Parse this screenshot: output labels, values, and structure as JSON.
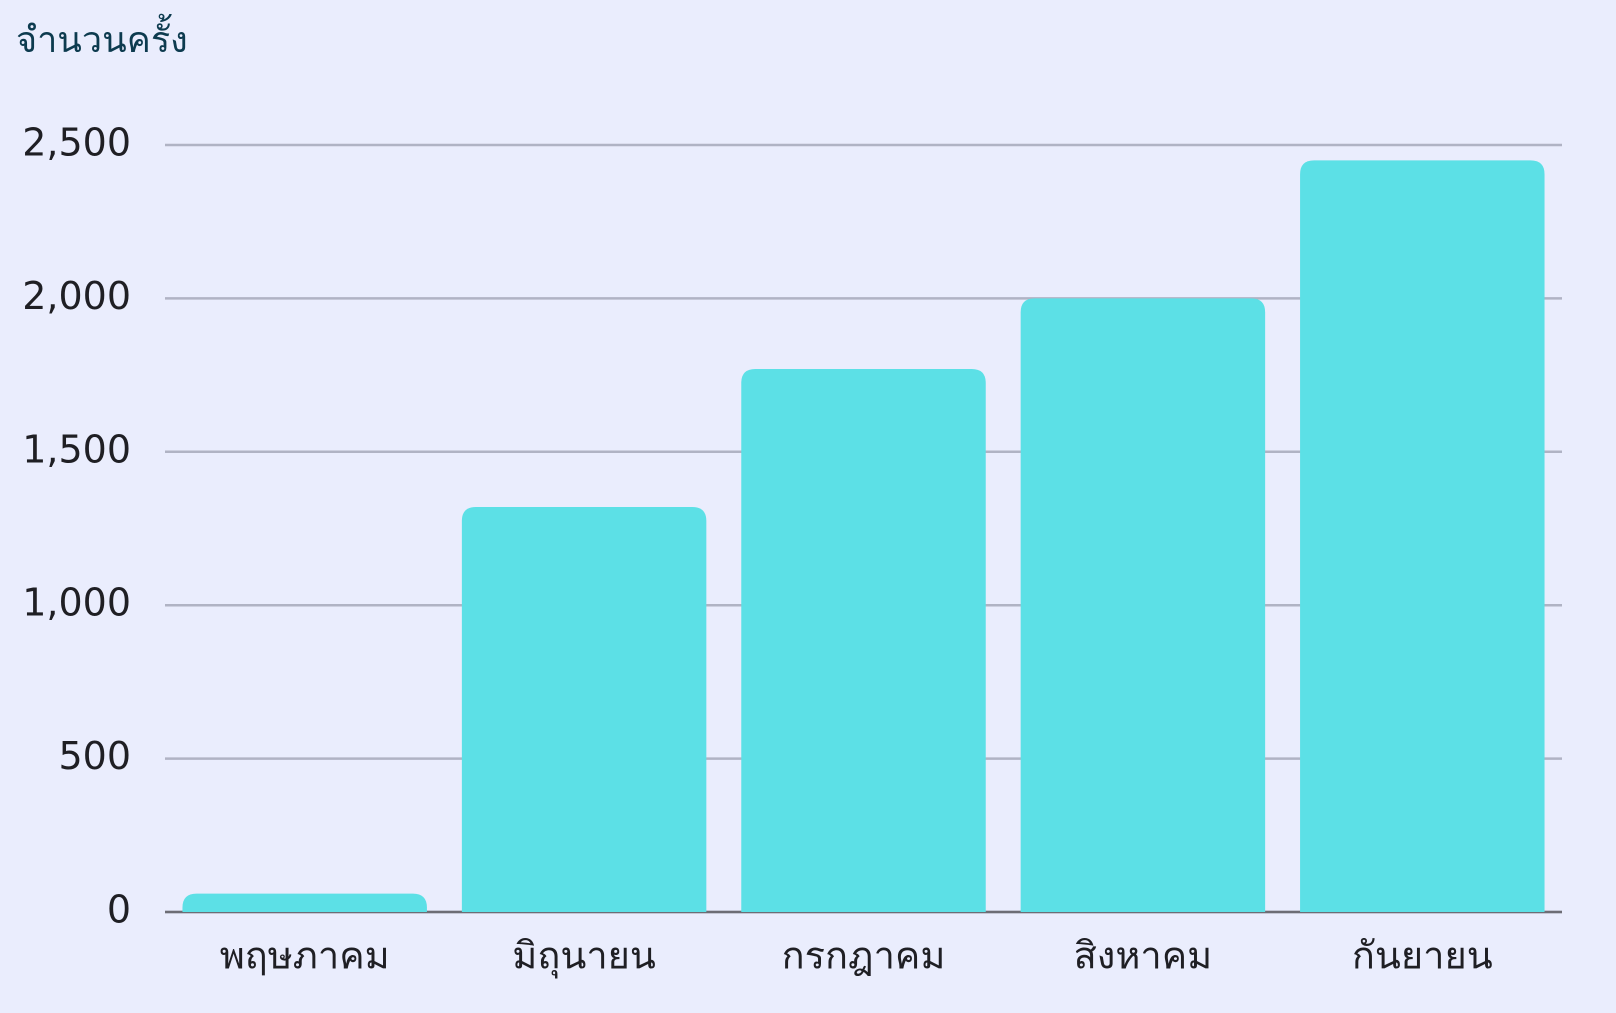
{
  "chart_data": {
    "type": "bar",
    "y_axis_label": "จำนวนครั้ง",
    "categories": [
      "พฤษภาคม",
      "มิถุนายน",
      "กรกฎาคม",
      "สิงหาคม",
      "กันยายน"
    ],
    "values": [
      60,
      1320,
      1770,
      2000,
      2450
    ],
    "color": "#5ce0e6",
    "ylim": [
      0,
      2500
    ],
    "yticks": [
      0,
      500,
      {
        "value": 1000,
        "label": "1,000"
      },
      {
        "value": 1500,
        "label": "1,500"
      },
      {
        "value": 2000,
        "label": "2,000"
      },
      {
        "value": 2500,
        "label": "2,500"
      }
    ],
    "grid": true
  }
}
